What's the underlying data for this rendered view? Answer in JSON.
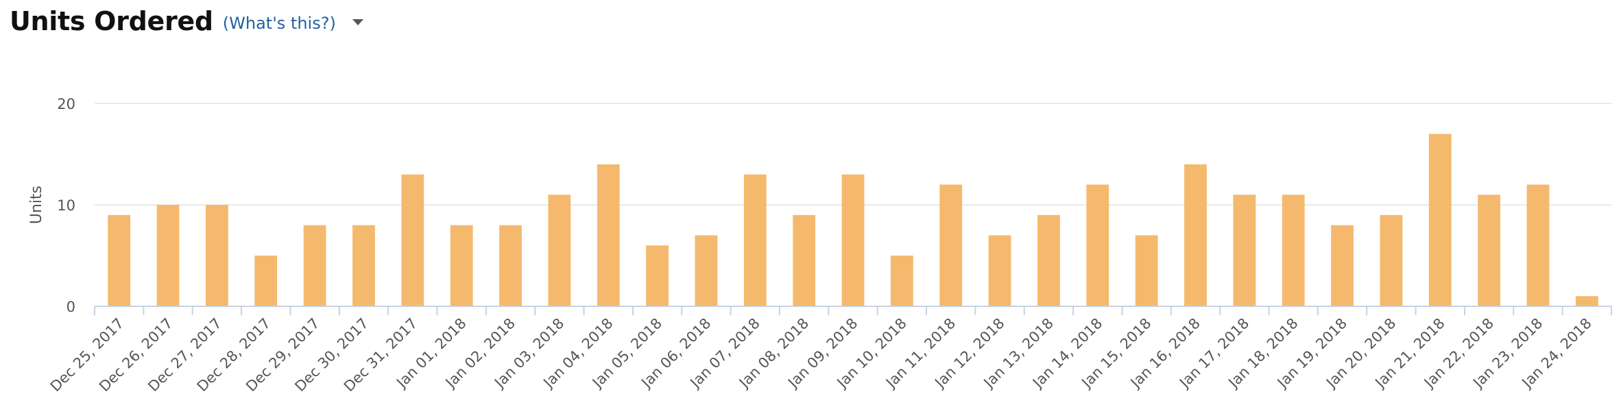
{
  "header": {
    "title": "Units Ordered",
    "help_link": "(What's this?)"
  },
  "colors": {
    "bar": "#f5b96d",
    "grid": "#e3e3e3",
    "axis": "#c8d2e0",
    "text": "#555555"
  },
  "chart_data": {
    "type": "bar",
    "ylabel": "Units",
    "ylim": [
      0,
      20
    ],
    "yticks": [
      0,
      10,
      20
    ],
    "grid": true,
    "categories": [
      "Dec 25, 2017",
      "Dec 26, 2017",
      "Dec 27, 2017",
      "Dec 28, 2017",
      "Dec 29, 2017",
      "Dec 30, 2017",
      "Dec 31, 2017",
      "Jan 01, 2018",
      "Jan 02, 2018",
      "Jan 03, 2018",
      "Jan 04, 2018",
      "Jan 05, 2018",
      "Jan 06, 2018",
      "Jan 07, 2018",
      "Jan 08, 2018",
      "Jan 09, 2018",
      "Jan 10, 2018",
      "Jan 11, 2018",
      "Jan 12, 2018",
      "Jan 13, 2018",
      "Jan 14, 2018",
      "Jan 15, 2018",
      "Jan 16, 2018",
      "Jan 17, 2018",
      "Jan 18, 2018",
      "Jan 19, 2018",
      "Jan 20, 2018",
      "Jan 21, 2018",
      "Jan 22, 2018",
      "Jan 23, 2018",
      "Jan 24, 2018"
    ],
    "values": [
      9,
      10,
      10,
      5,
      8,
      8,
      13,
      8,
      8,
      11,
      14,
      6,
      7,
      13,
      9,
      13,
      5,
      12,
      7,
      9,
      12,
      7,
      14,
      11,
      11,
      8,
      9,
      17,
      11,
      12,
      1
    ]
  }
}
